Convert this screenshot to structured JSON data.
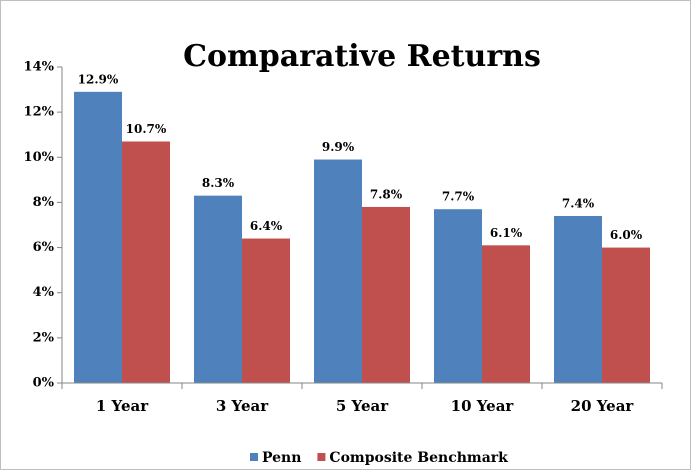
{
  "chart_data": {
    "type": "bar",
    "title": "Comparative Returns",
    "categories": [
      "1 Year",
      "3 Year",
      "5 Year",
      "10 Year",
      "20 Year"
    ],
    "series": [
      {
        "name": "Penn",
        "color": "#4f81bd",
        "values": [
          12.9,
          8.3,
          9.9,
          7.7,
          7.4
        ],
        "value_labels": [
          "12.9%",
          "8.3%",
          "9.9%",
          "7.7%",
          "7.4%"
        ]
      },
      {
        "name": "Composite Benchmark",
        "color": "#c0504d",
        "values": [
          10.7,
          6.4,
          7.8,
          6.1,
          6.0
        ],
        "value_labels": [
          "10.7%",
          "6.4%",
          "7.8%",
          "6.1%",
          "6.0%"
        ]
      }
    ],
    "ylim": [
      0,
      14
    ],
    "yticks": [
      {
        "value": 0,
        "label": "0%"
      },
      {
        "value": 2,
        "label": "2%"
      },
      {
        "value": 4,
        "label": "4%"
      },
      {
        "value": 6,
        "label": "6%"
      },
      {
        "value": 8,
        "label": "8%"
      },
      {
        "value": 10,
        "label": "10%"
      },
      {
        "value": 12,
        "label": "12%"
      },
      {
        "value": 14,
        "label": "14%"
      }
    ],
    "grid": false,
    "legend": "bottom"
  }
}
